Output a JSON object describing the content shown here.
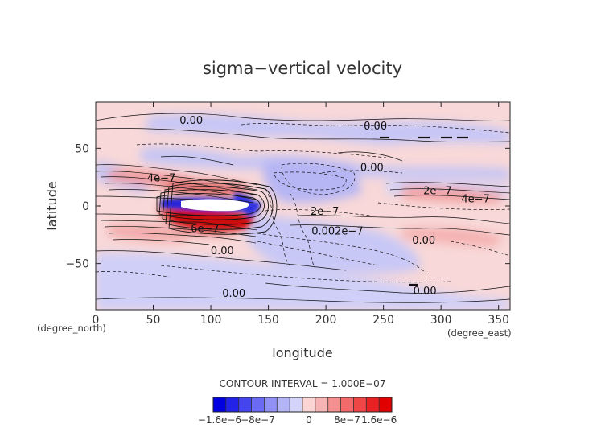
{
  "chart_data": {
    "type": "heatmap",
    "title": "sigma−vertical velocity",
    "xlabel": "longitude",
    "ylabel": "latitude",
    "x_unit": "(degree_east)",
    "y_unit": "(degree_north)",
    "xlim": [
      0,
      360
    ],
    "ylim": [
      -90,
      90
    ],
    "x_ticks": [
      0,
      50,
      100,
      150,
      200,
      250,
      300,
      350
    ],
    "y_ticks": [
      -50,
      0,
      50
    ],
    "contour_interval_text": "CONTOUR INTERVAL = 1.000E−07",
    "colorbar": {
      "labels": [
        "−1.6e−6",
        "−8e−7",
        "0",
        "8e−7",
        "1.6e−6"
      ],
      "colors": [
        "#0000e0",
        "#2222e8",
        "#4545ee",
        "#6a6af2",
        "#9090f5",
        "#b4b4f8",
        "#d4d4fb",
        "#fbd4d4",
        "#f8b4b4",
        "#f59090",
        "#f26a6a",
        "#ee4545",
        "#e82222",
        "#e00000"
      ]
    },
    "contour_labels": [
      {
        "text": "0.00",
        "lon": 83,
        "lat": 74
      },
      {
        "text": "0.00",
        "lon": 243,
        "lat": 69
      },
      {
        "text": "0.00",
        "lon": 240,
        "lat": 33
      },
      {
        "text": "4e−7",
        "lon": 57,
        "lat": 24
      },
      {
        "text": "2e−7",
        "lon": 297,
        "lat": 13
      },
      {
        "text": "4e−7",
        "lon": 330,
        "lat": 6
      },
      {
        "text": "2e−7",
        "lon": 199,
        "lat": -5
      },
      {
        "text": "0.002e−7",
        "lon": 210,
        "lat": -22
      },
      {
        "text": "6e−7",
        "lon": 95,
        "lat": -20
      },
      {
        "text": "0.00",
        "lon": 285,
        "lat": -30
      },
      {
        "text": "0.00",
        "lon": 110,
        "lat": -39
      },
      {
        "text": "0.00",
        "lon": 286,
        "lat": -74
      },
      {
        "text": "0.00",
        "lon": 120,
        "lat": -76
      }
    ],
    "grid": false,
    "legend": "bottom"
  }
}
